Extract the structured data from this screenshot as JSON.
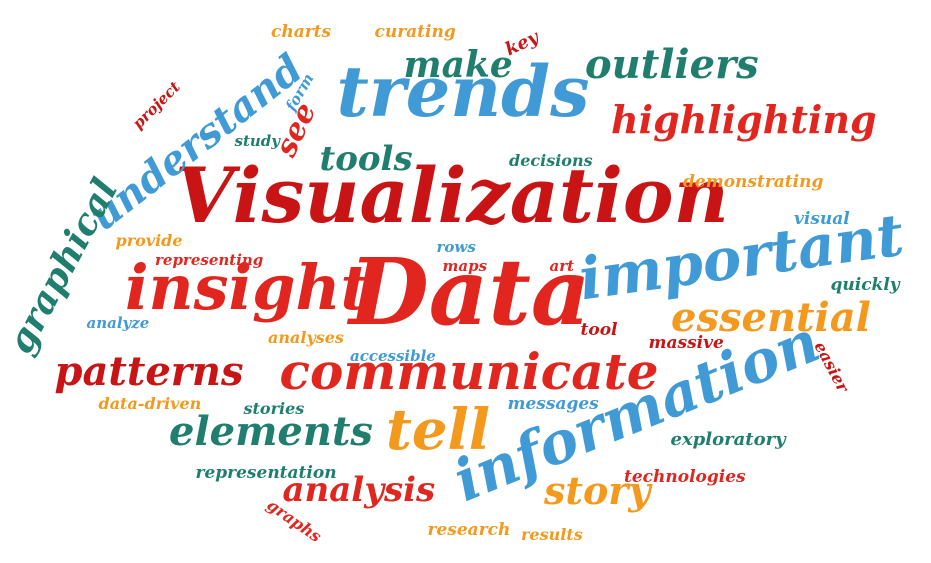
{
  "palette": {
    "red": "#e0261f",
    "darkred": "#c81414",
    "orange": "#f39a1e",
    "blue": "#3f9ad6",
    "teal": "#1f7e6e"
  },
  "words": [
    {
      "text": "Visualization",
      "color": "darkred"
    },
    {
      "text": "Data",
      "color": "red"
    },
    {
      "text": "trends",
      "color": "blue"
    },
    {
      "text": "information",
      "color": "blue"
    },
    {
      "text": "important",
      "color": "blue"
    },
    {
      "text": "insight",
      "color": "red"
    },
    {
      "text": "communicate",
      "color": "red"
    },
    {
      "text": "tell",
      "color": "orange"
    },
    {
      "text": "essential",
      "color": "orange"
    },
    {
      "text": "highlighting",
      "color": "red"
    },
    {
      "text": "outliers",
      "color": "teal"
    },
    {
      "text": "make",
      "color": "teal"
    },
    {
      "text": "understand",
      "color": "blue"
    },
    {
      "text": "graphical",
      "color": "teal"
    },
    {
      "text": "patterns",
      "color": "darkred"
    },
    {
      "text": "elements",
      "color": "teal"
    },
    {
      "text": "analysis",
      "color": "red"
    },
    {
      "text": "story",
      "color": "orange"
    },
    {
      "text": "tools",
      "color": "teal"
    },
    {
      "text": "see",
      "color": "red"
    },
    {
      "text": "charts",
      "color": "orange"
    },
    {
      "text": "curating",
      "color": "orange"
    },
    {
      "text": "key",
      "color": "darkred"
    },
    {
      "text": "form",
      "color": "blue"
    },
    {
      "text": "project",
      "color": "darkred"
    },
    {
      "text": "study",
      "color": "teal"
    },
    {
      "text": "decisions",
      "color": "teal"
    },
    {
      "text": "demonstrating",
      "color": "orange"
    },
    {
      "text": "visual",
      "color": "blue"
    },
    {
      "text": "provide",
      "color": "orange"
    },
    {
      "text": "representing",
      "color": "red"
    },
    {
      "text": "rows",
      "color": "blue"
    },
    {
      "text": "maps",
      "color": "red"
    },
    {
      "text": "art",
      "color": "red"
    },
    {
      "text": "quickly",
      "color": "teal"
    },
    {
      "text": "analyze",
      "color": "blue"
    },
    {
      "text": "analyses",
      "color": "orange"
    },
    {
      "text": "tool",
      "color": "darkred"
    },
    {
      "text": "accessible",
      "color": "blue"
    },
    {
      "text": "massive",
      "color": "darkred"
    },
    {
      "text": "easier",
      "color": "darkred"
    },
    {
      "text": "data-driven",
      "color": "orange"
    },
    {
      "text": "stories",
      "color": "teal"
    },
    {
      "text": "messages",
      "color": "blue"
    },
    {
      "text": "exploratory",
      "color": "teal"
    },
    {
      "text": "representation",
      "color": "teal"
    },
    {
      "text": "technologies",
      "color": "red"
    },
    {
      "text": "graphs",
      "color": "red"
    },
    {
      "text": "research",
      "color": "orange"
    },
    {
      "text": "results",
      "color": "orange"
    }
  ]
}
